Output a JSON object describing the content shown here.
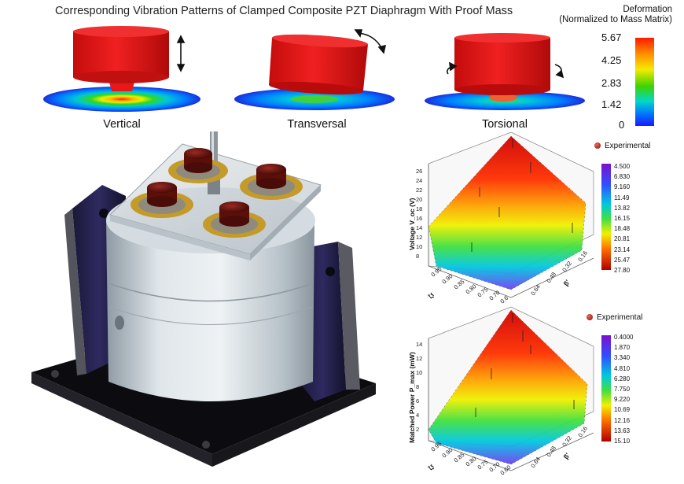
{
  "header": {
    "title": "Corresponding Vibration Patterns of Clamped Composite PZT Diaphragm With Proof Mass",
    "colorbar_title_line1": "Deformation",
    "colorbar_title_line2": "(Normalized to Mass Matrix)",
    "colorbar_ticks": [
      "5.67",
      "4.25",
      "2.83",
      "1.42",
      "0"
    ]
  },
  "modes": [
    {
      "label": "Vertical",
      "icon": "vertical-double-arrow-icon"
    },
    {
      "label": "Transversal",
      "icon": "curved-arrow-icon"
    },
    {
      "label": "Torsional",
      "icon": "rotation-arrows-icon"
    }
  ],
  "plots": [
    {
      "legend": "Experimental",
      "z_label": "Voltage V_oc (V)",
      "z_ticks": [
        "26",
        "24",
        "22",
        "20",
        "18",
        "16",
        "14",
        "12",
        "10",
        "8"
      ],
      "x_axis_label": "ζr",
      "x_ticks": [
        "0.95",
        "0.90",
        "0.85",
        "0.80",
        "0.75",
        "0.70",
        "0.6"
      ],
      "y_axis_label": "β'",
      "y_ticks": [
        "0.16",
        "0.32",
        "0.48",
        "0.64"
      ],
      "scale_ticks": [
        "4.500",
        "6.830",
        "9.160",
        "11.49",
        "13.82",
        "16.15",
        "18.48",
        "20.81",
        "23.14",
        "25.47",
        "27.80"
      ]
    },
    {
      "legend": "Experimental",
      "z_label": "Matched Power P_max (mW)",
      "z_ticks": [
        "14",
        "12",
        "10",
        "8",
        "6",
        "4",
        "2"
      ],
      "x_axis_label": "ζr",
      "x_ticks": [
        "0.95",
        "0.90",
        "0.85",
        "0.80",
        "0.75",
        "0.70",
        "0.60"
      ],
      "y_axis_label": "β'",
      "y_ticks": [
        "0.16",
        "0.32",
        "0.48",
        "0.64"
      ],
      "scale_ticks": [
        "0.4000",
        "1.870",
        "3.340",
        "4.810",
        "6.280",
        "7.750",
        "9.220",
        "10.69",
        "12.16",
        "13.63",
        "15.10"
      ]
    }
  ],
  "colors": {
    "proof_mass_red": "#e01818",
    "housing_silver": "#c9d2d8",
    "base_black": "#101014",
    "gold_ring": "#c49a2a",
    "magnet_maroon": "#6a1410"
  }
}
